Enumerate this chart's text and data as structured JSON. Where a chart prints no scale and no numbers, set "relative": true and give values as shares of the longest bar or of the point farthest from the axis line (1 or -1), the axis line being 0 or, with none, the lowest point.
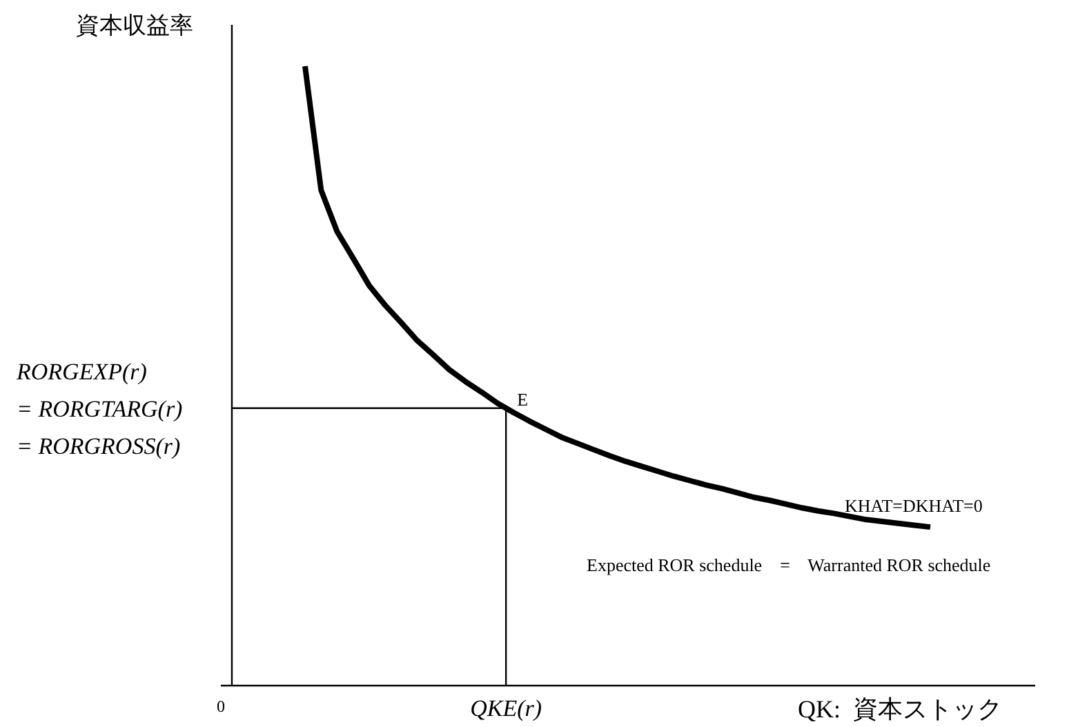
{
  "chart_data": {
    "type": "line",
    "relative": true,
    "ylabel": "資本収益率",
    "xlabel": "QK:  資本ストック",
    "categories": [
      null,
      null,
      null,
      null,
      null,
      null,
      null,
      null,
      null,
      null,
      null,
      null,
      null,
      null,
      null,
      null,
      null,
      null,
      null,
      null,
      null,
      null,
      null,
      null,
      null,
      null,
      null,
      null,
      null,
      null,
      null,
      null,
      null,
      null,
      null,
      null,
      null,
      null,
      null,
      null
    ],
    "series": [
      {
        "color": "#000000",
        "values": [
          1.0,
          0.8,
          0.733,
          0.69,
          0.646,
          0.614,
          0.586,
          0.557,
          0.534,
          0.51,
          0.491,
          0.474,
          0.456,
          0.441,
          0.427,
          0.414,
          0.401,
          0.391,
          0.381,
          0.371,
          0.362,
          0.354,
          0.346,
          0.338,
          0.331,
          0.324,
          0.318,
          0.311,
          0.304,
          0.299,
          0.293,
          0.287,
          0.282,
          0.278,
          0.273,
          0.268,
          0.265,
          0.262,
          0.259,
          0.256
        ]
      }
    ],
    "ref_lines": [
      {
        "axis": "y",
        "value": 0.448,
        "label": "RORGEXP(r)\n= RORGTARG(r)\n= RORGROSS(r)"
      }
    ],
    "annotations": [
      "0",
      "QKE(r)",
      "E",
      "KHAT=DKHAT=0",
      "Expected ROR schedule    =    Warranted ROR schedule"
    ]
  }
}
